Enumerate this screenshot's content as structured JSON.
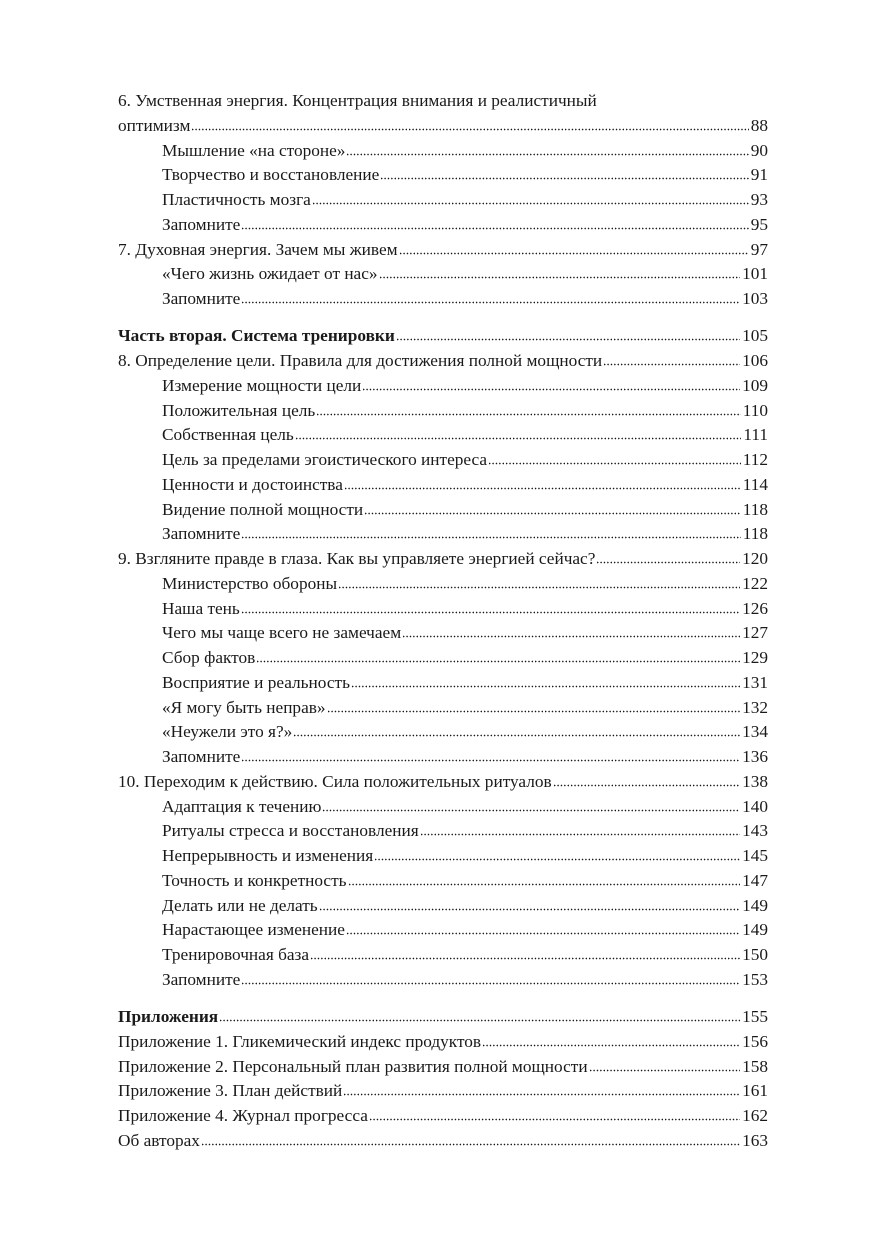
{
  "toc": [
    {
      "title": "6. Умственная энергия. Концентрация внимания и реалистичный",
      "page": null,
      "level": 1
    },
    {
      "title": "оптимизм",
      "page": "88",
      "level": 1
    },
    {
      "title": "Мышление «на стороне»",
      "page": "90",
      "level": 2
    },
    {
      "title": "Творчество и восстановление",
      "page": "91",
      "level": 2
    },
    {
      "title": "Пластичность мозга",
      "page": "93",
      "level": 2
    },
    {
      "title": "Запомните",
      "page": "95",
      "level": 2
    },
    {
      "title": "7. Духовная энергия. Зачем мы живем",
      "page": "97",
      "level": 1
    },
    {
      "title": "«Чего жизнь ожидает от нас»",
      "page": "101",
      "level": 2
    },
    {
      "title": "Запомните",
      "page": "103",
      "level": 2
    },
    {
      "title": "Часть вторая. Система тренировки",
      "page": "105",
      "level": 1,
      "bold": true,
      "gap": true
    },
    {
      "title": "8. Определение цели. Правила для достижения полной мощности",
      "page": "106",
      "level": 1
    },
    {
      "title": "Измерение мощности цели",
      "page": "109",
      "level": 2
    },
    {
      "title": "Положительная цель",
      "page": "110",
      "level": 2
    },
    {
      "title": "Собственная цель",
      "page": "111",
      "level": 2
    },
    {
      "title": "Цель за пределами эгоистического интереса",
      "page": "112",
      "level": 2
    },
    {
      "title": "Ценности и достоинства",
      "page": "114",
      "level": 2
    },
    {
      "title": "Видение полной мощности",
      "page": "118",
      "level": 2
    },
    {
      "title": "Запомните",
      "page": "118",
      "level": 2
    },
    {
      "title": "9. Взгляните правде в глаза. Как вы управляете энергией сейчас?",
      "page": "120",
      "level": 1
    },
    {
      "title": "Министерство обороны",
      "page": "122",
      "level": 2
    },
    {
      "title": "Наша тень",
      "page": "126",
      "level": 2
    },
    {
      "title": "Чего мы чаще всего не замечаем",
      "page": "127",
      "level": 2
    },
    {
      "title": "Сбор фактов",
      "page": "129",
      "level": 2
    },
    {
      "title": "Восприятие и реальность",
      "page": "131",
      "level": 2
    },
    {
      "title": "«Я могу быть неправ»",
      "page": "132",
      "level": 2
    },
    {
      "title": "«Неужели это я?»",
      "page": "134",
      "level": 2
    },
    {
      "title": "Запомните",
      "page": "136",
      "level": 2
    },
    {
      "title": "10. Переходим к действию. Сила положительных ритуалов",
      "page": "138",
      "level": 1
    },
    {
      "title": "Адаптация к течению",
      "page": "140",
      "level": 2
    },
    {
      "title": "Ритуалы стресса и восстановления",
      "page": "143",
      "level": 2
    },
    {
      "title": "Непрерывность и изменения",
      "page": "145",
      "level": 2
    },
    {
      "title": "Точность и конкретность",
      "page": "147",
      "level": 2
    },
    {
      "title": "Делать или не делать",
      "page": "149",
      "level": 2
    },
    {
      "title": "Нарастающее изменение",
      "page": "149",
      "level": 2
    },
    {
      "title": "Тренировочная база",
      "page": "150",
      "level": 2
    },
    {
      "title": "Запомните",
      "page": "153",
      "level": 2
    },
    {
      "title": "Приложения",
      "page": "155",
      "level": 1,
      "bold": true,
      "gap": true
    },
    {
      "title": "Приложение 1. Гликемический индекс продуктов",
      "page": "156",
      "level": 1
    },
    {
      "title": "Приложение 2. Персональный план развития полной мощности",
      "page": "158",
      "level": 1
    },
    {
      "title": "Приложение 3. План действий",
      "page": "161",
      "level": 1
    },
    {
      "title": "Приложение 4. Журнал прогресса",
      "page": "162",
      "level": 1
    },
    {
      "title": "Об авторах",
      "page": "163",
      "level": 1
    }
  ]
}
